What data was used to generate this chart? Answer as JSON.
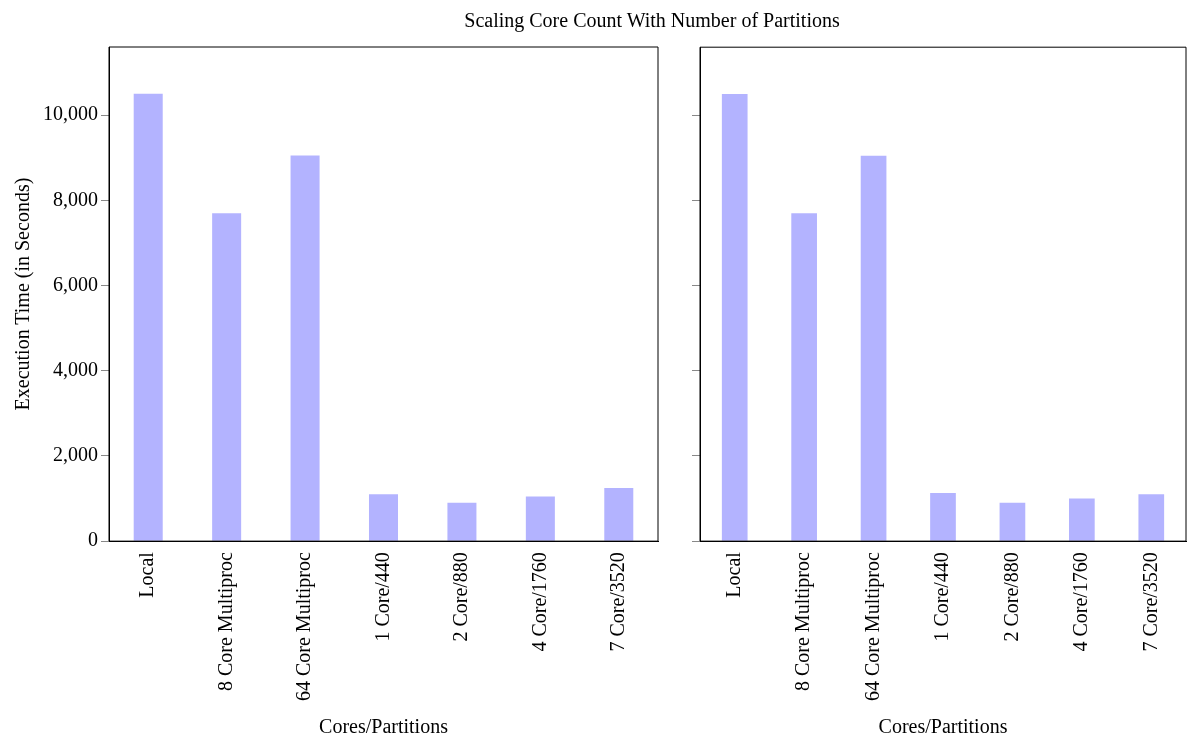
{
  "chart_data": [
    {
      "type": "bar",
      "title": "Scaling Core Count With Number of Partitions",
      "xlabel": "Cores/Partitions",
      "ylabel": "Execution Time (in Seconds)",
      "categories": [
        "Local",
        "8 Core Multiproc",
        "64 Core Multiproc",
        "1 Core/440",
        "2 Core/880",
        "4 Core/1760",
        "7 Core/3520"
      ],
      "color": "#b3b3ff",
      "values": [
        10500,
        7700,
        9050,
        1100,
        900,
        1050,
        1250
      ],
      "ylim": [
        0,
        11600
      ],
      "yticks": [
        0,
        {
          "value": 2000,
          "label": "2,000"
        },
        {
          "value": 4000,
          "label": "4,000"
        },
        {
          "value": 6000,
          "label": "6,000"
        },
        {
          "value": 8000,
          "label": "8,000"
        },
        {
          "value": 10000,
          "label": "10,000"
        }
      ],
      "grid": false,
      "legend": false
    },
    {
      "type": "bar",
      "xlabel": "Cores/Partitions",
      "categories": [
        "Local",
        "8 Core Multiproc",
        "64 Core Multiproc",
        "1 Core/440",
        "2 Core/880",
        "4 Core/1760",
        "7 Core/3520"
      ],
      "color": "#b3b3ff",
      "values": [
        10500,
        7700,
        9050,
        1130,
        900,
        1000,
        1100
      ],
      "ylim": [
        0,
        11600
      ],
      "yticks": [
        0,
        2000,
        4000,
        6000,
        8000,
        10000
      ],
      "tick_labels": "x",
      "grid": false,
      "legend": false
    }
  ]
}
